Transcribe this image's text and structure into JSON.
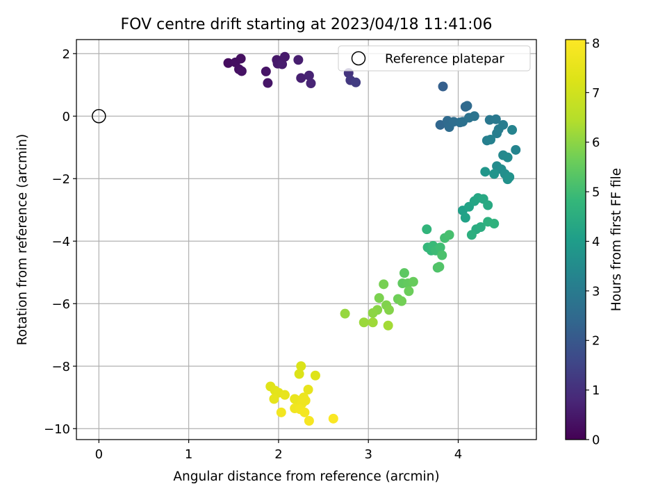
{
  "chart_data": {
    "type": "scatter",
    "title": "FOV centre drift starting at 2023/04/18 11:41:06",
    "xlabel": "Angular distance from reference (arcmin)",
    "ylabel": "Rotation from reference (arcmin)",
    "xlim": [
      -0.25,
      4.87
    ],
    "ylim": [
      -10.35,
      2.45
    ],
    "xticks": [
      0,
      1,
      2,
      3,
      4
    ],
    "yticks": [
      2,
      0,
      -2,
      -4,
      -6,
      -8,
      -10
    ],
    "xtick_labels": [
      "0",
      "1",
      "2",
      "3",
      "4"
    ],
    "ytick_labels": [
      "2",
      "0",
      "−2",
      "−4",
      "−6",
      "−8",
      "−10"
    ],
    "grid": true,
    "colormap": "viridis",
    "colorbar": {
      "label": "Hours from first FF file",
      "range": [
        0,
        8.07
      ],
      "ticks": [
        0,
        1,
        2,
        3,
        4,
        5,
        6,
        7,
        8
      ],
      "tick_labels": [
        "0",
        "1",
        "2",
        "3",
        "4",
        "5",
        "6",
        "7",
        "8"
      ]
    },
    "legend": {
      "placement": "top-right",
      "entries": [
        "Reference platepar"
      ]
    },
    "reference_point": {
      "x": 0,
      "y": 0,
      "label": "Reference platepar"
    },
    "points": [
      {
        "x": 1.44,
        "y": 1.7,
        "h": 0.25
      },
      {
        "x": 1.52,
        "y": 1.72,
        "h": 0.3
      },
      {
        "x": 1.56,
        "y": 1.5,
        "h": 0.32
      },
      {
        "x": 1.58,
        "y": 1.84,
        "h": 0.28
      },
      {
        "x": 1.59,
        "y": 1.44,
        "h": 0.35
      },
      {
        "x": 1.86,
        "y": 1.43,
        "h": 0.4
      },
      {
        "x": 1.88,
        "y": 1.06,
        "h": 0.42
      },
      {
        "x": 1.98,
        "y": 1.8,
        "h": 0.45
      },
      {
        "x": 1.99,
        "y": 1.68,
        "h": 0.5
      },
      {
        "x": 2.04,
        "y": 1.66,
        "h": 0.55
      },
      {
        "x": 2.07,
        "y": 1.9,
        "h": 0.52
      },
      {
        "x": 2.22,
        "y": 1.8,
        "h": 0.6
      },
      {
        "x": 2.25,
        "y": 1.22,
        "h": 0.65
      },
      {
        "x": 2.34,
        "y": 1.3,
        "h": 0.7
      },
      {
        "x": 2.36,
        "y": 1.05,
        "h": 0.75
      },
      {
        "x": 2.78,
        "y": 1.38,
        "h": 1.1
      },
      {
        "x": 2.8,
        "y": 1.15,
        "h": 1.2
      },
      {
        "x": 2.86,
        "y": 1.08,
        "h": 1.3
      },
      {
        "x": 3.83,
        "y": 0.95,
        "h": 2.2
      },
      {
        "x": 3.8,
        "y": -0.28,
        "h": 2.4
      },
      {
        "x": 3.88,
        "y": -0.15,
        "h": 2.5
      },
      {
        "x": 3.9,
        "y": -0.35,
        "h": 2.55
      },
      {
        "x": 3.95,
        "y": -0.18,
        "h": 2.6
      },
      {
        "x": 4.02,
        "y": -0.2,
        "h": 2.65
      },
      {
        "x": 4.05,
        "y": -0.18,
        "h": 2.7
      },
      {
        "x": 4.08,
        "y": 0.3,
        "h": 2.45
      },
      {
        "x": 4.1,
        "y": 0.33,
        "h": 2.5
      },
      {
        "x": 4.12,
        "y": -0.05,
        "h": 2.75
      },
      {
        "x": 4.18,
        "y": 0.0,
        "h": 2.8
      },
      {
        "x": 4.35,
        "y": -0.12,
        "h": 2.9
      },
      {
        "x": 4.42,
        "y": -0.1,
        "h": 2.95
      },
      {
        "x": 4.45,
        "y": -0.42,
        "h": 3.0
      },
      {
        "x": 4.5,
        "y": -0.28,
        "h": 3.05
      },
      {
        "x": 4.43,
        "y": -0.55,
        "h": 3.1
      },
      {
        "x": 4.32,
        "y": -0.78,
        "h": 3.15
      },
      {
        "x": 4.36,
        "y": -0.75,
        "h": 3.2
      },
      {
        "x": 4.6,
        "y": -0.44,
        "h": 3.25
      },
      {
        "x": 4.64,
        "y": -1.08,
        "h": 3.3
      },
      {
        "x": 4.5,
        "y": -1.25,
        "h": 3.4
      },
      {
        "x": 4.55,
        "y": -1.32,
        "h": 3.45
      },
      {
        "x": 4.43,
        "y": -1.6,
        "h": 3.5
      },
      {
        "x": 4.48,
        "y": -1.7,
        "h": 3.55
      },
      {
        "x": 4.52,
        "y": -1.85,
        "h": 3.6
      },
      {
        "x": 4.55,
        "y": -2.02,
        "h": 3.65
      },
      {
        "x": 4.57,
        "y": -1.95,
        "h": 3.7
      },
      {
        "x": 4.4,
        "y": -1.85,
        "h": 3.75
      },
      {
        "x": 4.3,
        "y": -1.78,
        "h": 3.8
      },
      {
        "x": 4.05,
        "y": -3.02,
        "h": 4.1
      },
      {
        "x": 4.08,
        "y": -3.25,
        "h": 4.15
      },
      {
        "x": 4.12,
        "y": -2.9,
        "h": 4.2
      },
      {
        "x": 4.18,
        "y": -2.72,
        "h": 4.25
      },
      {
        "x": 4.22,
        "y": -2.62,
        "h": 4.3
      },
      {
        "x": 4.28,
        "y": -2.65,
        "h": 4.35
      },
      {
        "x": 4.33,
        "y": -2.85,
        "h": 4.4
      },
      {
        "x": 4.2,
        "y": -3.62,
        "h": 4.45
      },
      {
        "x": 4.25,
        "y": -3.55,
        "h": 4.5
      },
      {
        "x": 4.15,
        "y": -3.8,
        "h": 4.55
      },
      {
        "x": 4.33,
        "y": -3.38,
        "h": 4.6
      },
      {
        "x": 4.4,
        "y": -3.44,
        "h": 4.65
      },
      {
        "x": 3.65,
        "y": -3.62,
        "h": 4.75
      },
      {
        "x": 3.66,
        "y": -4.2,
        "h": 4.8
      },
      {
        "x": 3.7,
        "y": -4.3,
        "h": 4.85
      },
      {
        "x": 3.72,
        "y": -4.15,
        "h": 4.9
      },
      {
        "x": 3.75,
        "y": -4.3,
        "h": 4.95
      },
      {
        "x": 3.8,
        "y": -4.2,
        "h": 5.0
      },
      {
        "x": 3.85,
        "y": -3.9,
        "h": 5.05
      },
      {
        "x": 3.9,
        "y": -3.8,
        "h": 5.1
      },
      {
        "x": 3.82,
        "y": -4.45,
        "h": 5.15
      },
      {
        "x": 3.77,
        "y": -4.85,
        "h": 5.2
      },
      {
        "x": 3.79,
        "y": -4.82,
        "h": 5.25
      },
      {
        "x": 3.4,
        "y": -5.02,
        "h": 5.4
      },
      {
        "x": 3.38,
        "y": -5.35,
        "h": 5.45
      },
      {
        "x": 3.44,
        "y": -5.35,
        "h": 5.5
      },
      {
        "x": 3.5,
        "y": -5.3,
        "h": 5.55
      },
      {
        "x": 3.45,
        "y": -5.6,
        "h": 5.6
      },
      {
        "x": 3.33,
        "y": -5.85,
        "h": 5.65
      },
      {
        "x": 3.37,
        "y": -5.92,
        "h": 5.7
      },
      {
        "x": 3.17,
        "y": -5.38,
        "h": 5.75
      },
      {
        "x": 3.12,
        "y": -5.82,
        "h": 5.8
      },
      {
        "x": 3.2,
        "y": -6.05,
        "h": 5.85
      },
      {
        "x": 3.23,
        "y": -6.2,
        "h": 5.9
      },
      {
        "x": 3.1,
        "y": -6.2,
        "h": 5.95
      },
      {
        "x": 3.05,
        "y": -6.3,
        "h": 6.0
      },
      {
        "x": 2.74,
        "y": -6.32,
        "h": 6.1
      },
      {
        "x": 2.95,
        "y": -6.6,
        "h": 6.15
      },
      {
        "x": 3.05,
        "y": -6.6,
        "h": 6.2
      },
      {
        "x": 3.22,
        "y": -6.7,
        "h": 6.25
      },
      {
        "x": 2.25,
        "y": -8.0,
        "h": 7.2
      },
      {
        "x": 2.23,
        "y": -8.25,
        "h": 7.25
      },
      {
        "x": 2.41,
        "y": -8.3,
        "h": 7.3
      },
      {
        "x": 1.91,
        "y": -8.65,
        "h": 7.35
      },
      {
        "x": 1.96,
        "y": -8.78,
        "h": 7.4
      },
      {
        "x": 2.0,
        "y": -8.85,
        "h": 7.45
      },
      {
        "x": 1.95,
        "y": -9.05,
        "h": 7.5
      },
      {
        "x": 2.07,
        "y": -8.92,
        "h": 7.55
      },
      {
        "x": 2.33,
        "y": -8.75,
        "h": 7.55
      },
      {
        "x": 2.18,
        "y": -9.05,
        "h": 7.6
      },
      {
        "x": 2.22,
        "y": -9.1,
        "h": 7.62
      },
      {
        "x": 2.28,
        "y": -9.0,
        "h": 7.65
      },
      {
        "x": 2.3,
        "y": -9.1,
        "h": 7.7
      },
      {
        "x": 2.26,
        "y": -9.2,
        "h": 7.72
      },
      {
        "x": 2.18,
        "y": -9.35,
        "h": 7.75
      },
      {
        "x": 2.24,
        "y": -9.38,
        "h": 7.78
      },
      {
        "x": 2.03,
        "y": -9.48,
        "h": 7.8
      },
      {
        "x": 2.29,
        "y": -9.48,
        "h": 7.85
      },
      {
        "x": 2.34,
        "y": -9.75,
        "h": 7.9
      },
      {
        "x": 2.61,
        "y": -9.68,
        "h": 8.0
      }
    ]
  }
}
